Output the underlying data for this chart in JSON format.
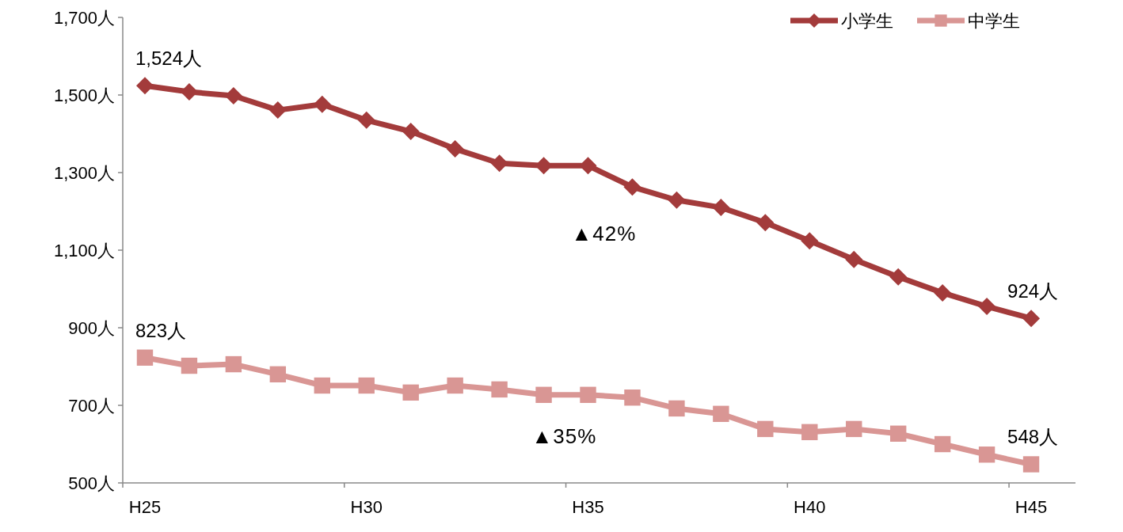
{
  "chart_data": {
    "type": "line",
    "categories": [
      "H25",
      null,
      null,
      null,
      null,
      "H30",
      null,
      null,
      null,
      null,
      "H35",
      null,
      null,
      null,
      null,
      "H40",
      null,
      null,
      null,
      null,
      "H45"
    ],
    "series": [
      {
        "name": "小学生",
        "color": "#a33b3b",
        "marker": "diamond",
        "values": [
          1524,
          1508,
          1498,
          1461,
          1476,
          1435,
          1406,
          1361,
          1324,
          1318,
          1318,
          1263,
          1229,
          1210,
          1171,
          1124,
          1076,
          1031,
          990,
          955,
          924
        ],
        "value_labels": [
          "1,524人",
          null,
          null,
          null,
          null,
          null,
          null,
          null,
          null,
          null,
          null,
          null,
          null,
          null,
          null,
          null,
          null,
          null,
          null,
          null,
          "924人"
        ]
      },
      {
        "name": "中学生",
        "color": "#d99694",
        "marker": "square",
        "values": [
          823,
          802,
          806,
          780,
          751,
          751,
          733,
          751,
          741,
          727,
          727,
          720,
          692,
          678,
          639,
          631,
          639,
          627,
          600,
          573,
          548
        ],
        "value_labels": [
          "823人",
          null,
          null,
          null,
          null,
          null,
          null,
          null,
          null,
          null,
          null,
          null,
          null,
          null,
          null,
          null,
          null,
          null,
          null,
          null,
          "548人"
        ]
      }
    ],
    "ylim": [
      500,
      1700
    ],
    "yticks": [
      {
        "value": 500,
        "label": "500人"
      },
      {
        "value": 700,
        "label": "700人"
      },
      {
        "value": 900,
        "label": "900人"
      },
      {
        "value": 1100,
        "label": "1,100人"
      },
      {
        "value": 1300,
        "label": "1,300人"
      },
      {
        "value": 1500,
        "label": "1,500人"
      },
      {
        "value": 1700,
        "label": "1,700人"
      }
    ],
    "annotations": [
      "▲42%",
      "▲35%"
    ],
    "legend": "top right",
    "grid": false,
    "line_style": "solid"
  }
}
